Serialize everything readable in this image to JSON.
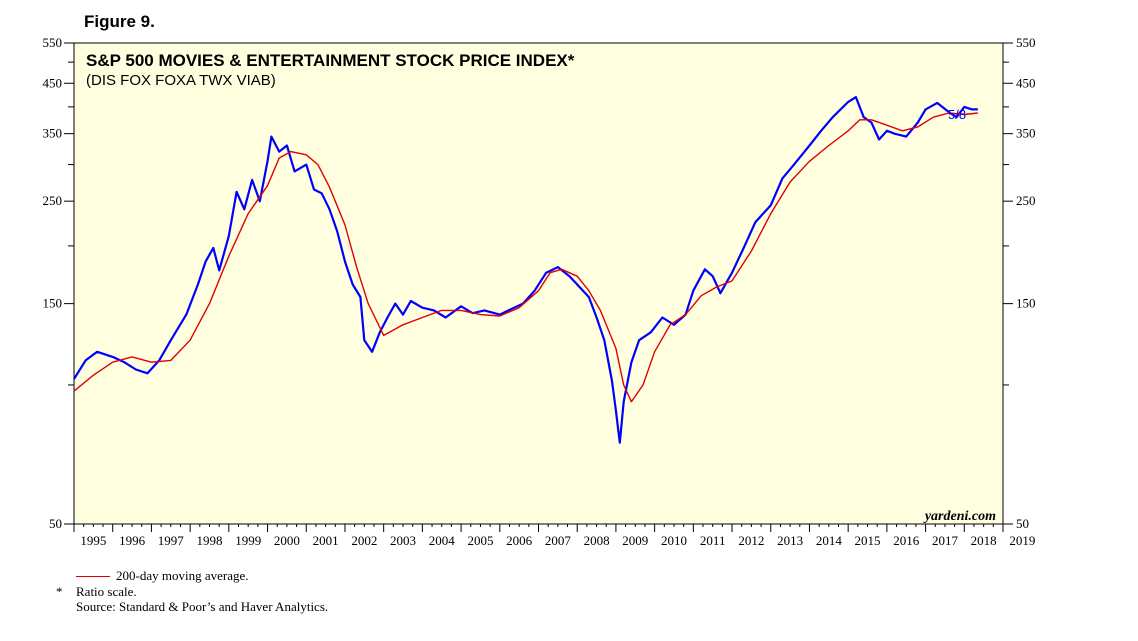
{
  "figure_label": "Figure 9.",
  "chart_data": {
    "type": "line",
    "title": "S&P 500 MOVIES & ENTERTAINMENT STOCK PRICE INDEX*",
    "subtitle": "(DIS FOX FOXA TWX VIAB)",
    "y_scale": "log",
    "ylim": [
      50,
      550
    ],
    "y_ticks": [
      50,
      150,
      250,
      350,
      450,
      550
    ],
    "x_range": [
      1995,
      2019
    ],
    "x_tick_labels": [
      "1995",
      "1996",
      "1997",
      "1998",
      "1999",
      "2000",
      "2001",
      "2002",
      "2003",
      "2004",
      "2005",
      "2006",
      "2007",
      "2008",
      "2009",
      "2010",
      "2011",
      "2012",
      "2013",
      "2014",
      "2015",
      "2016",
      "2017",
      "2018",
      "2019"
    ],
    "grid": false,
    "background_color": "#ffffe0",
    "series": [
      {
        "name": "S&P 500 Movies & Entertainment Index",
        "color": "#0000ff",
        "x": [
          1995.0,
          1995.3,
          1995.6,
          1996.0,
          1996.3,
          1996.6,
          1996.9,
          1997.2,
          1997.5,
          1997.9,
          1998.2,
          1998.4,
          1998.6,
          1998.75,
          1999.0,
          1999.2,
          1999.4,
          1999.6,
          1999.8,
          2000.0,
          2000.1,
          2000.3,
          2000.5,
          2000.7,
          2001.0,
          2001.2,
          2001.4,
          2001.6,
          2001.8,
          2002.0,
          2002.2,
          2002.4,
          2002.5,
          2002.7,
          2002.9,
          2003.1,
          2003.3,
          2003.5,
          2003.7,
          2004.0,
          2004.3,
          2004.6,
          2005.0,
          2005.3,
          2005.6,
          2006.0,
          2006.3,
          2006.6,
          2006.9,
          2007.2,
          2007.5,
          2007.8,
          2008.0,
          2008.3,
          2008.5,
          2008.7,
          2008.9,
          2009.0,
          2009.1,
          2009.2,
          2009.4,
          2009.6,
          2009.9,
          2010.2,
          2010.5,
          2010.8,
          2011.0,
          2011.3,
          2011.5,
          2011.7,
          2012.0,
          2012.3,
          2012.6,
          2013.0,
          2013.3,
          2013.6,
          2014.0,
          2014.3,
          2014.6,
          2015.0,
          2015.2,
          2015.4,
          2015.6,
          2015.8,
          2016.0,
          2016.2,
          2016.5,
          2016.8,
          2017.0,
          2017.3,
          2017.6,
          2017.8,
          2018.0,
          2018.2,
          2018.35
        ],
        "values": [
          103,
          113,
          118,
          115,
          112,
          108,
          106,
          113,
          125,
          142,
          165,
          185,
          198,
          177,
          210,
          262,
          240,
          278,
          250,
          305,
          345,
          320,
          330,
          290,
          300,
          265,
          260,
          240,
          215,
          185,
          165,
          155,
          125,
          118,
          130,
          140,
          150,
          142,
          152,
          147,
          145,
          140,
          148,
          143,
          145,
          142,
          146,
          150,
          160,
          175,
          180,
          172,
          165,
          155,
          140,
          125,
          102,
          88,
          75,
          92,
          112,
          125,
          130,
          140,
          135,
          142,
          160,
          178,
          172,
          158,
          175,
          198,
          225,
          245,
          280,
          300,
          330,
          355,
          380,
          410,
          420,
          380,
          370,
          340,
          355,
          350,
          345,
          370,
          395,
          408,
          390,
          380,
          400,
          395,
          395
        ]
      },
      {
        "name": "200-day moving average",
        "color": "#e00000",
        "x": [
          1995.0,
          1995.5,
          1996.0,
          1996.5,
          1997.0,
          1997.5,
          1998.0,
          1998.5,
          1999.0,
          1999.5,
          2000.0,
          2000.3,
          2000.6,
          2001.0,
          2001.3,
          2001.6,
          2002.0,
          2002.3,
          2002.6,
          2003.0,
          2003.5,
          2004.0,
          2004.5,
          2005.0,
          2005.5,
          2006.0,
          2006.5,
          2007.0,
          2007.3,
          2007.6,
          2008.0,
          2008.3,
          2008.6,
          2009.0,
          2009.2,
          2009.4,
          2009.7,
          2010.0,
          2010.4,
          2010.8,
          2011.2,
          2011.6,
          2012.0,
          2012.5,
          2013.0,
          2013.5,
          2014.0,
          2014.5,
          2015.0,
          2015.3,
          2015.6,
          2016.0,
          2016.4,
          2016.8,
          2017.2,
          2017.6,
          2018.0,
          2018.35
        ],
        "values": [
          97,
          105,
          112,
          115,
          112,
          113,
          125,
          150,
          190,
          235,
          270,
          310,
          320,
          315,
          300,
          268,
          222,
          180,
          150,
          128,
          135,
          140,
          145,
          145,
          142,
          141,
          147,
          160,
          175,
          178,
          172,
          160,
          145,
          120,
          100,
          92,
          100,
          118,
          135,
          142,
          156,
          163,
          168,
          195,
          235,
          275,
          305,
          330,
          355,
          375,
          375,
          365,
          355,
          362,
          380,
          388,
          385,
          388
        ]
      }
    ],
    "annotations": {
      "last_point_label": "5/8",
      "watermark": "yardeni.com"
    }
  },
  "footer": {
    "legend_text": "200-day moving average.",
    "note_marker": "*",
    "note_text": "Ratio scale.",
    "source": "Source: Standard & Poor’s and Haver Analytics."
  }
}
